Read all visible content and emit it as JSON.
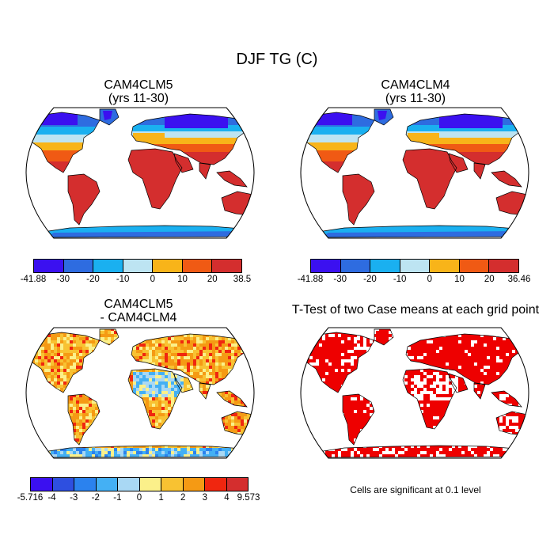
{
  "title": "DJF TG (C)",
  "panels": [
    {
      "title_lines": [
        "CAM4CLM5",
        "(yrs 11-30)"
      ],
      "colors": [
        "#3b10f0",
        "#2e6ce0",
        "#1ab0f0",
        "#bde4f2",
        "#f8b419",
        "#f05a14",
        "#d42e2e"
      ],
      "labels": [
        "-41.88",
        "-30",
        "-20",
        "-10",
        "0",
        "10",
        "20",
        "38.5"
      ]
    },
    {
      "title_lines": [
        "CAM4CLM4",
        "(yrs 11-30)"
      ],
      "colors": [
        "#3b10f0",
        "#2e6ce0",
        "#1ab0f0",
        "#bde4f2",
        "#f8b419",
        "#f05a14",
        "#d42e2e"
      ],
      "labels": [
        "-41.88",
        "-30",
        "-20",
        "-10",
        "0",
        "10",
        "20",
        "36.46"
      ]
    },
    {
      "title_lines": [
        "CAM4CLM5",
        "- CAM4CLM4"
      ],
      "colors": [
        "#3b10f0",
        "#2e4fe0",
        "#2b82ee",
        "#44b0f4",
        "#a9d8f4",
        "#fbf08a",
        "#f8c232",
        "#f59a14",
        "#f0260f",
        "#d42e2e"
      ],
      "labels": [
        "-5.716",
        "-4",
        "-3",
        "-2",
        "-1",
        "0",
        "1",
        "2",
        "3",
        "4",
        "9.573"
      ]
    },
    {
      "title_lines": [
        "T-Test of two Case means at each grid point"
      ],
      "colors": [],
      "labels": []
    }
  ],
  "significance_note": "Cells are significant at 0.1 level"
}
